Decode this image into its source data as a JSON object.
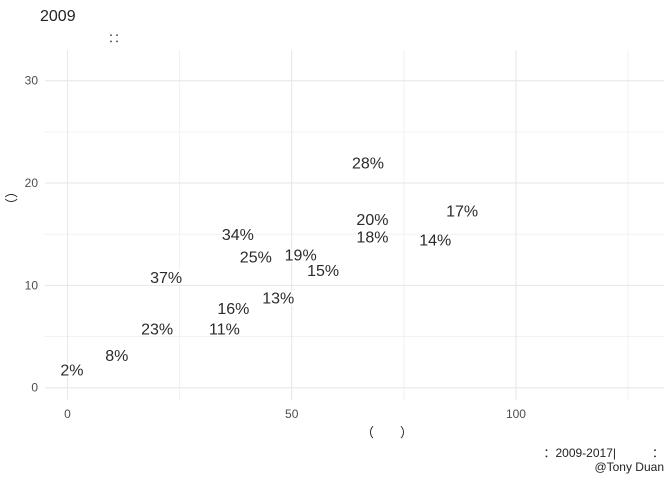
{
  "chart_data": {
    "type": "scatter",
    "title": "2009",
    "subtitle": "：：",
    "xlabel": "（　　）",
    "ylabel": "（）",
    "caption": "：2009-2017|　　　：",
    "credit": "@Tony Duan",
    "xlim": [
      -5,
      133
    ],
    "ylim": [
      -1.2,
      33
    ],
    "x_ticks": [
      0,
      50,
      100
    ],
    "y_ticks": [
      0,
      10,
      20,
      30
    ],
    "grid": true,
    "points": [
      {
        "x": 1,
        "y": 1.8,
        "label": "2%"
      },
      {
        "x": 11,
        "y": 3.2,
        "label": "8%"
      },
      {
        "x": 20,
        "y": 5.8,
        "label": "23%"
      },
      {
        "x": 22,
        "y": 10.8,
        "label": "37%"
      },
      {
        "x": 35,
        "y": 5.8,
        "label": "11%"
      },
      {
        "x": 37,
        "y": 7.8,
        "label": "16%"
      },
      {
        "x": 38,
        "y": 15.0,
        "label": "34%"
      },
      {
        "x": 42,
        "y": 12.8,
        "label": "25%"
      },
      {
        "x": 47,
        "y": 8.8,
        "label": "13%"
      },
      {
        "x": 52,
        "y": 13.0,
        "label": "19%"
      },
      {
        "x": 57,
        "y": 11.5,
        "label": "15%"
      },
      {
        "x": 67,
        "y": 22.0,
        "label": "28%"
      },
      {
        "x": 68,
        "y": 16.5,
        "label": "20%"
      },
      {
        "x": 68,
        "y": 14.8,
        "label": "18%"
      },
      {
        "x": 82,
        "y": 14.5,
        "label": "14%"
      },
      {
        "x": 88,
        "y": 17.3,
        "label": "17%"
      }
    ]
  }
}
